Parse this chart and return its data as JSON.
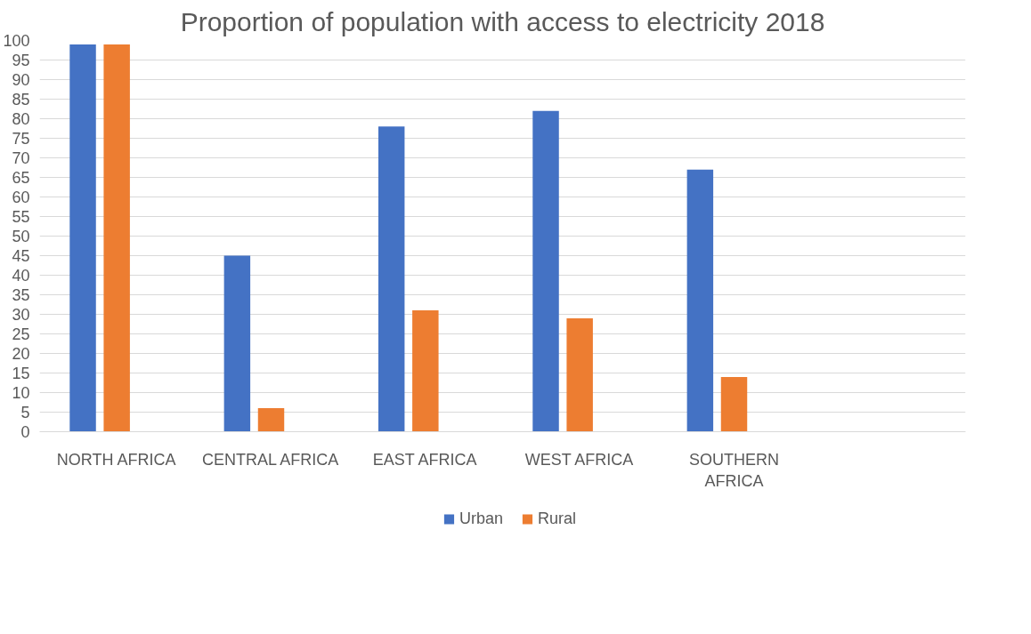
{
  "chart_data": {
    "type": "bar",
    "title": "Proportion of population with access to electricity 2018",
    "categories": [
      "NORTH AFRICA",
      "CENTRAL AFRICA",
      "EAST AFRICA",
      "WEST AFRICA",
      "SOUTHERN AFRICA",
      null
    ],
    "series": [
      {
        "name": "Urban",
        "color": "#4472c4",
        "values": [
          99,
          45,
          78,
          82,
          67,
          null
        ]
      },
      {
        "name": "Rural",
        "color": "#ed7d31",
        "values": [
          99,
          6,
          31,
          29,
          14,
          null
        ]
      }
    ],
    "ylim": [
      0,
      100
    ],
    "yticks": [
      0,
      5,
      10,
      15,
      20,
      25,
      30,
      35,
      40,
      45,
      50,
      55,
      60,
      65,
      70,
      75,
      80,
      85,
      90,
      95,
      100
    ],
    "grid": "y",
    "legend": "bottom"
  }
}
